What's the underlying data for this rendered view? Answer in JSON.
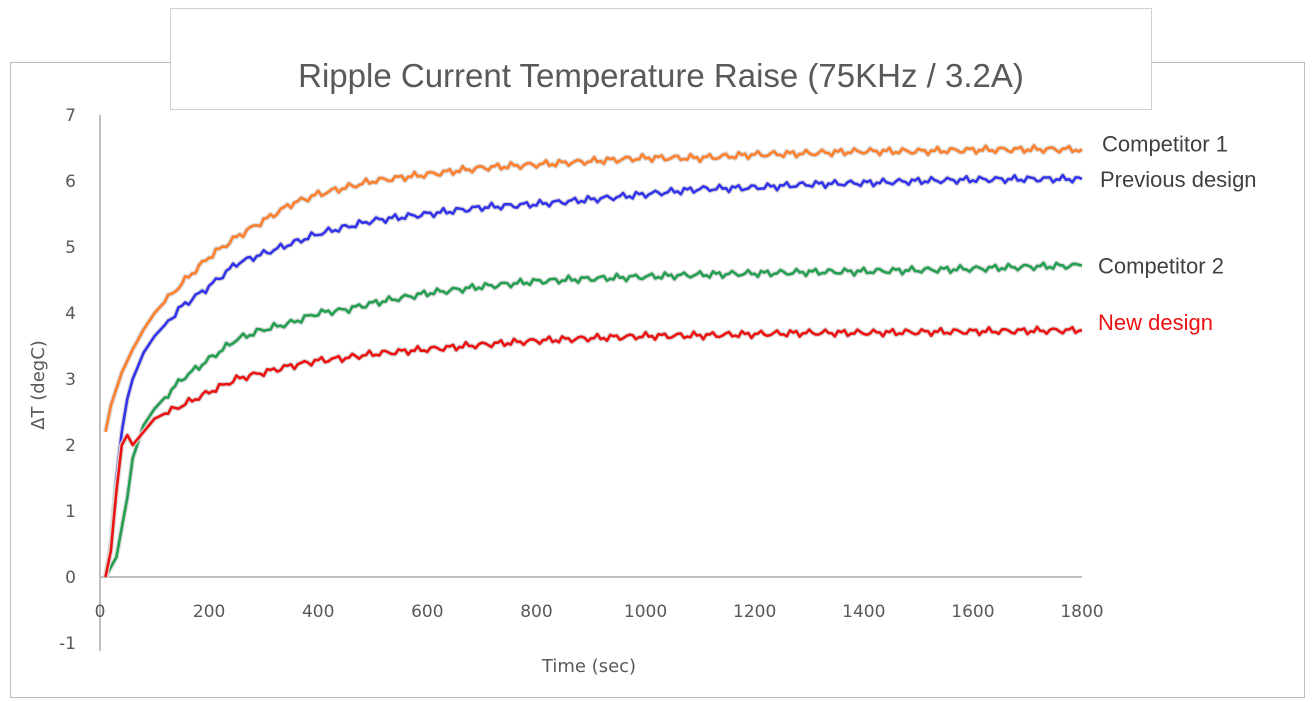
{
  "chart_data": {
    "type": "line",
    "title": "Ripple Current Temperature Raise (75KHz / 3.2A)",
    "xlabel": "Time (sec)",
    "ylabel": "ΔT (degC)",
    "xlim": [
      0,
      1800
    ],
    "ylim": [
      -1,
      7
    ],
    "xticks": [
      "0",
      "200",
      "400",
      "600",
      "800",
      "1000",
      "1200",
      "1400",
      "1600",
      "1800"
    ],
    "yticks": [
      "-1",
      "0",
      "1",
      "2",
      "3",
      "4",
      "5",
      "6",
      "7"
    ],
    "grid": false,
    "legend": "inline-right",
    "series": [
      {
        "name": "Competitor 1",
        "color": "#ff7f2a",
        "points": [
          [
            10,
            2.2
          ],
          [
            20,
            2.6
          ],
          [
            40,
            3.1
          ],
          [
            60,
            3.45
          ],
          [
            80,
            3.75
          ],
          [
            100,
            4.0
          ],
          [
            150,
            4.45
          ],
          [
            200,
            4.85
          ],
          [
            250,
            5.15
          ],
          [
            300,
            5.4
          ],
          [
            350,
            5.65
          ],
          [
            400,
            5.8
          ],
          [
            450,
            5.9
          ],
          [
            500,
            6.0
          ],
          [
            600,
            6.1
          ],
          [
            700,
            6.2
          ],
          [
            800,
            6.25
          ],
          [
            900,
            6.3
          ],
          [
            1000,
            6.35
          ],
          [
            1100,
            6.35
          ],
          [
            1200,
            6.4
          ],
          [
            1300,
            6.42
          ],
          [
            1400,
            6.45
          ],
          [
            1500,
            6.45
          ],
          [
            1600,
            6.47
          ],
          [
            1700,
            6.48
          ],
          [
            1800,
            6.48
          ]
        ]
      },
      {
        "name": "Previous design",
        "color": "#3333ee",
        "points": [
          [
            10,
            0.0
          ],
          [
            20,
            0.5
          ],
          [
            30,
            1.5
          ],
          [
            40,
            2.2
          ],
          [
            50,
            2.7
          ],
          [
            60,
            3.0
          ],
          [
            80,
            3.4
          ],
          [
            100,
            3.65
          ],
          [
            150,
            4.1
          ],
          [
            200,
            4.4
          ],
          [
            250,
            4.75
          ],
          [
            300,
            4.9
          ],
          [
            350,
            5.05
          ],
          [
            400,
            5.2
          ],
          [
            450,
            5.3
          ],
          [
            500,
            5.4
          ],
          [
            600,
            5.5
          ],
          [
            700,
            5.6
          ],
          [
            800,
            5.65
          ],
          [
            900,
            5.72
          ],
          [
            1000,
            5.8
          ],
          [
            1100,
            5.88
          ],
          [
            1200,
            5.9
          ],
          [
            1300,
            5.95
          ],
          [
            1400,
            5.97
          ],
          [
            1500,
            6.0
          ],
          [
            1600,
            6.02
          ],
          [
            1700,
            6.03
          ],
          [
            1800,
            6.03
          ]
        ]
      },
      {
        "name": "Competitor 2",
        "color": "#22a050",
        "points": [
          [
            10,
            0.0
          ],
          [
            30,
            0.3
          ],
          [
            50,
            1.2
          ],
          [
            60,
            1.8
          ],
          [
            80,
            2.3
          ],
          [
            100,
            2.55
          ],
          [
            150,
            3.0
          ],
          [
            200,
            3.3
          ],
          [
            250,
            3.6
          ],
          [
            300,
            3.75
          ],
          [
            350,
            3.85
          ],
          [
            400,
            4.0
          ],
          [
            450,
            4.05
          ],
          [
            500,
            4.15
          ],
          [
            600,
            4.3
          ],
          [
            700,
            4.4
          ],
          [
            800,
            4.48
          ],
          [
            900,
            4.52
          ],
          [
            1000,
            4.55
          ],
          [
            1100,
            4.58
          ],
          [
            1200,
            4.6
          ],
          [
            1300,
            4.62
          ],
          [
            1400,
            4.63
          ],
          [
            1500,
            4.65
          ],
          [
            1600,
            4.67
          ],
          [
            1700,
            4.7
          ],
          [
            1800,
            4.72
          ]
        ]
      },
      {
        "name": "New design",
        "color": "#ee1111",
        "points": [
          [
            10,
            0.0
          ],
          [
            20,
            0.4
          ],
          [
            30,
            1.3
          ],
          [
            40,
            2.0
          ],
          [
            50,
            2.15
          ],
          [
            60,
            2.0
          ],
          [
            80,
            2.2
          ],
          [
            100,
            2.4
          ],
          [
            150,
            2.6
          ],
          [
            200,
            2.8
          ],
          [
            250,
            3.0
          ],
          [
            300,
            3.1
          ],
          [
            350,
            3.2
          ],
          [
            400,
            3.28
          ],
          [
            450,
            3.32
          ],
          [
            500,
            3.38
          ],
          [
            600,
            3.45
          ],
          [
            700,
            3.52
          ],
          [
            800,
            3.58
          ],
          [
            900,
            3.62
          ],
          [
            1000,
            3.65
          ],
          [
            1100,
            3.66
          ],
          [
            1200,
            3.68
          ],
          [
            1300,
            3.7
          ],
          [
            1400,
            3.7
          ],
          [
            1500,
            3.71
          ],
          [
            1600,
            3.72
          ],
          [
            1700,
            3.73
          ],
          [
            1800,
            3.74
          ]
        ]
      }
    ]
  }
}
